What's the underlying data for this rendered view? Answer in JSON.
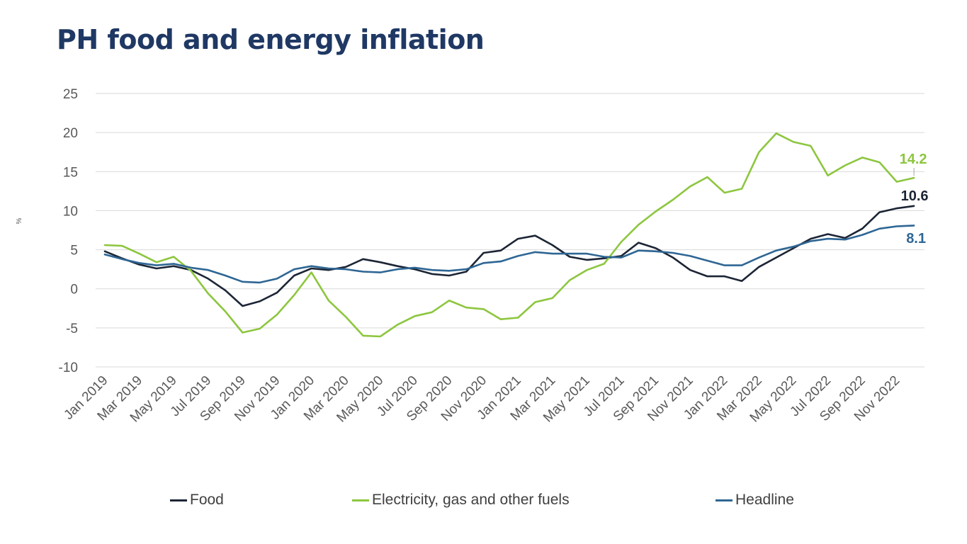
{
  "title": "PH food and energy inflation",
  "chart_data": {
    "type": "line",
    "title": "PH food and energy inflation",
    "ylabel": "%",
    "ylim": [
      -10,
      25
    ],
    "yticks": [
      -10,
      -5,
      0,
      5,
      10,
      15,
      20,
      25
    ],
    "grid": true,
    "legend_position": "bottom",
    "x": [
      "Jan 2019",
      "Feb 2019",
      "Mar 2019",
      "Apr 2019",
      "May 2019",
      "Jun 2019",
      "Jul 2019",
      "Aug 2019",
      "Sep 2019",
      "Oct 2019",
      "Nov 2019",
      "Dec 2019",
      "Jan 2020",
      "Feb 2020",
      "Mar 2020",
      "Apr 2020",
      "May 2020",
      "Jun 2020",
      "Jul 2020",
      "Aug 2020",
      "Sep 2020",
      "Oct 2020",
      "Nov 2020",
      "Dec 2020",
      "Jan 2021",
      "Feb 2021",
      "Mar 2021",
      "Apr 2021",
      "May 2021",
      "Jun 2021",
      "Jul 2021",
      "Aug 2021",
      "Sep 2021",
      "Oct 2021",
      "Nov 2021",
      "Dec 2021",
      "Jan 2022",
      "Feb 2022",
      "Mar 2022",
      "Apr 2022",
      "May 2022",
      "Jun 2022",
      "Jul 2022",
      "Aug 2022",
      "Sep 2022",
      "Oct 2022",
      "Nov 2022",
      "Dec 2022"
    ],
    "x_tick_labels": [
      "Jan 2019",
      "Mar 2019",
      "May 2019",
      "Jul 2019",
      "Sep 2019",
      "Nov 2019",
      "Jan 2020",
      "Mar 2020",
      "May 2020",
      "Jul 2020",
      "Sep 2020",
      "Nov 2020",
      "Jan 2021",
      "Mar 2021",
      "May 2021",
      "Jul 2021",
      "Sep 2021",
      "Nov 2021",
      "Jan 2022",
      "Mar 2022",
      "May 2022",
      "Jul 2022",
      "Sep 2022",
      "Nov 2022"
    ],
    "series": [
      {
        "name": "Food",
        "color": "#1c2535",
        "values": [
          4.8,
          3.9,
          3.1,
          2.6,
          2.9,
          2.4,
          1.3,
          -0.2,
          -2.2,
          -1.6,
          -0.5,
          1.7,
          2.6,
          2.4,
          2.8,
          3.8,
          3.4,
          2.9,
          2.5,
          1.9,
          1.7,
          2.2,
          4.6,
          4.9,
          6.4,
          6.8,
          5.6,
          4.1,
          3.7,
          3.9,
          4.2,
          5.9,
          5.2,
          4.0,
          2.4,
          1.6,
          1.6,
          1.0,
          2.8,
          4.0,
          5.2,
          6.4,
          7.0,
          6.5,
          7.7,
          9.8,
          10.3,
          10.6
        ]
      },
      {
        "name": "Electricity, gas and other fuels",
        "color": "#8dc63f",
        "values": [
          5.6,
          5.5,
          4.5,
          3.4,
          4.1,
          2.3,
          -0.6,
          -2.9,
          -5.6,
          -5.1,
          -3.3,
          -0.8,
          2.1,
          -1.5,
          -3.6,
          -6.0,
          -6.1,
          -4.6,
          -3.5,
          -3.0,
          -1.5,
          -2.4,
          -2.6,
          -3.9,
          -3.7,
          -1.7,
          -1.2,
          1.1,
          2.4,
          3.2,
          6.0,
          8.2,
          9.9,
          11.4,
          13.1,
          14.3,
          12.3,
          12.8,
          17.5,
          19.9,
          18.8,
          18.3,
          14.5,
          15.8,
          16.8,
          16.2,
          13.7,
          14.2
        ]
      },
      {
        "name": "Headline",
        "color": "#2e6694",
        "values": [
          4.4,
          3.8,
          3.3,
          3.0,
          3.2,
          2.7,
          2.4,
          1.7,
          0.9,
          0.8,
          1.3,
          2.5,
          2.9,
          2.6,
          2.5,
          2.2,
          2.1,
          2.5,
          2.7,
          2.4,
          2.3,
          2.5,
          3.3,
          3.5,
          4.2,
          4.7,
          4.5,
          4.5,
          4.5,
          4.1,
          4.0,
          4.9,
          4.8,
          4.6,
          4.2,
          3.6,
          3.0,
          3.0,
          4.0,
          4.9,
          5.4,
          6.1,
          6.4,
          6.3,
          6.9,
          7.7,
          8.0,
          8.1
        ]
      }
    ],
    "end_labels": [
      {
        "series": "Electricity, gas and other fuels",
        "text": "14.2"
      },
      {
        "series": "Food",
        "text": "10.6"
      },
      {
        "series": "Headline",
        "text": "8.1"
      }
    ]
  }
}
